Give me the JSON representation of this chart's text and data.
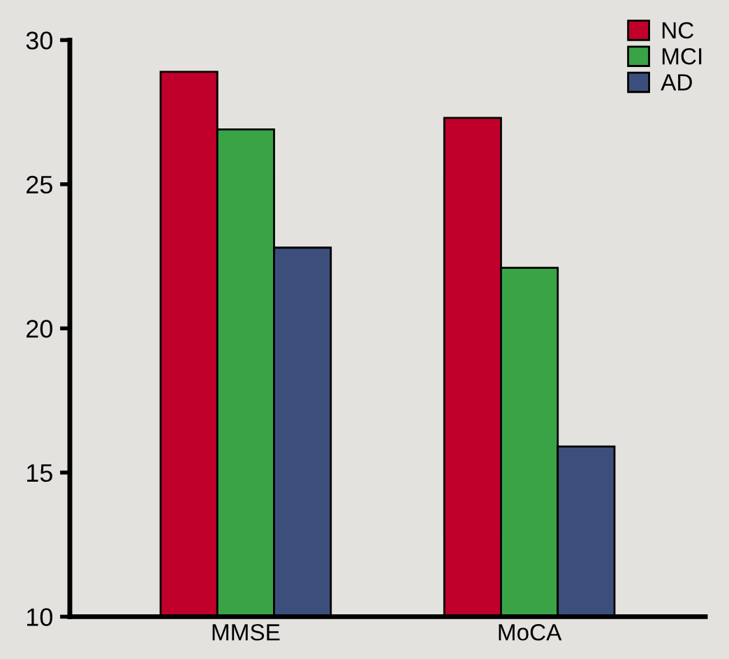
{
  "chart_data": {
    "type": "bar",
    "categories": [
      "MMSE",
      "MoCA"
    ],
    "series": [
      {
        "name": "NC",
        "color": "#c0002a",
        "values": [
          28.9,
          27.3
        ]
      },
      {
        "name": "MCI",
        "color": "#3aa346",
        "values": [
          26.9,
          22.1
        ]
      },
      {
        "name": "AD",
        "color": "#3c4f7c",
        "values": [
          22.8,
          15.9
        ]
      }
    ],
    "ylim": [
      10,
      30
    ],
    "yticks": [
      10,
      15,
      20,
      25,
      30
    ],
    "grid": false,
    "legend": "top right"
  }
}
